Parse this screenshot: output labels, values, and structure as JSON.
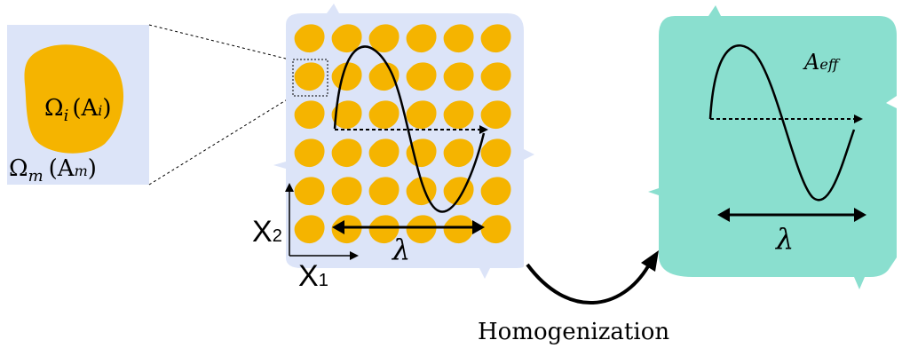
{
  "colors": {
    "composite_bg": "#dce4f8",
    "inclusion": "#f5b400",
    "homogenized_bg": "#8adfcf",
    "stroke": "#000000"
  },
  "zoom": {
    "inclusion_label_omega": "Ω",
    "inclusion_label_sub": "i",
    "inclusion_label_paren": "(A",
    "inclusion_label_paren_sub": "i",
    "inclusion_label_close": ")",
    "matrix_label_omega": "Ω",
    "matrix_label_sub": "m",
    "matrix_label_paren": "(A",
    "matrix_label_paren_sub": "m",
    "matrix_label_close": ")"
  },
  "axes": {
    "x2_label": "X",
    "x2_sub": "2",
    "x1_label": "X",
    "x1_sub": "1"
  },
  "composite": {
    "wavelength_label": "λ"
  },
  "homogenized": {
    "property_label": "A",
    "property_sub": "eff",
    "wavelength_label": "λ"
  },
  "process": {
    "label": "Homogenization"
  }
}
